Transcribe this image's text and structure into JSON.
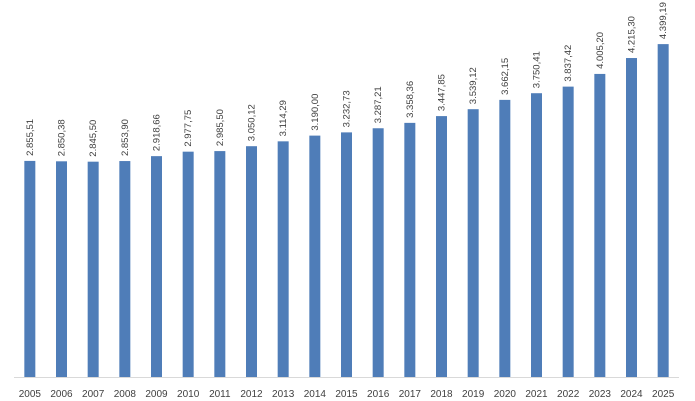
{
  "chart_data": {
    "type": "bar",
    "title": "",
    "xlabel": "",
    "ylabel": "",
    "categories": [
      "2005",
      "2006",
      "2007",
      "2008",
      "2009",
      "2010",
      "2011",
      "2012",
      "2013",
      "2014",
      "2015",
      "2016",
      "2017",
      "2018",
      "2019",
      "2020",
      "2021",
      "2022",
      "2023",
      "2024",
      "2025"
    ],
    "values": [
      2855.51,
      2850.38,
      2845.5,
      2853.9,
      2918.66,
      2977.75,
      2985.5,
      3050.12,
      3114.29,
      3190.0,
      3232.73,
      3287.21,
      3358.36,
      3447.85,
      3539.12,
      3662.15,
      3750.41,
      3837.42,
      4005.2,
      4215.3,
      4399.19
    ],
    "value_labels": [
      "2.855,51",
      "2.850,38",
      "2.845,50",
      "2.853,90",
      "2.918,66",
      "2.977,75",
      "2.985,50",
      "3.050,12",
      "3.114,29",
      "3.190,00",
      "3.232,73",
      "3.287,21",
      "3.358,36",
      "3.447,85",
      "3.539,12",
      "3.662,15",
      "3.750,41",
      "3.837,42",
      "4.005,20",
      "4.215,30",
      "4.399,19"
    ],
    "ylim": [
      0,
      4850
    ],
    "grid": false,
    "legend": "none",
    "bar_color": "#4F7DB8",
    "axis_color": "#d9d9d9"
  }
}
